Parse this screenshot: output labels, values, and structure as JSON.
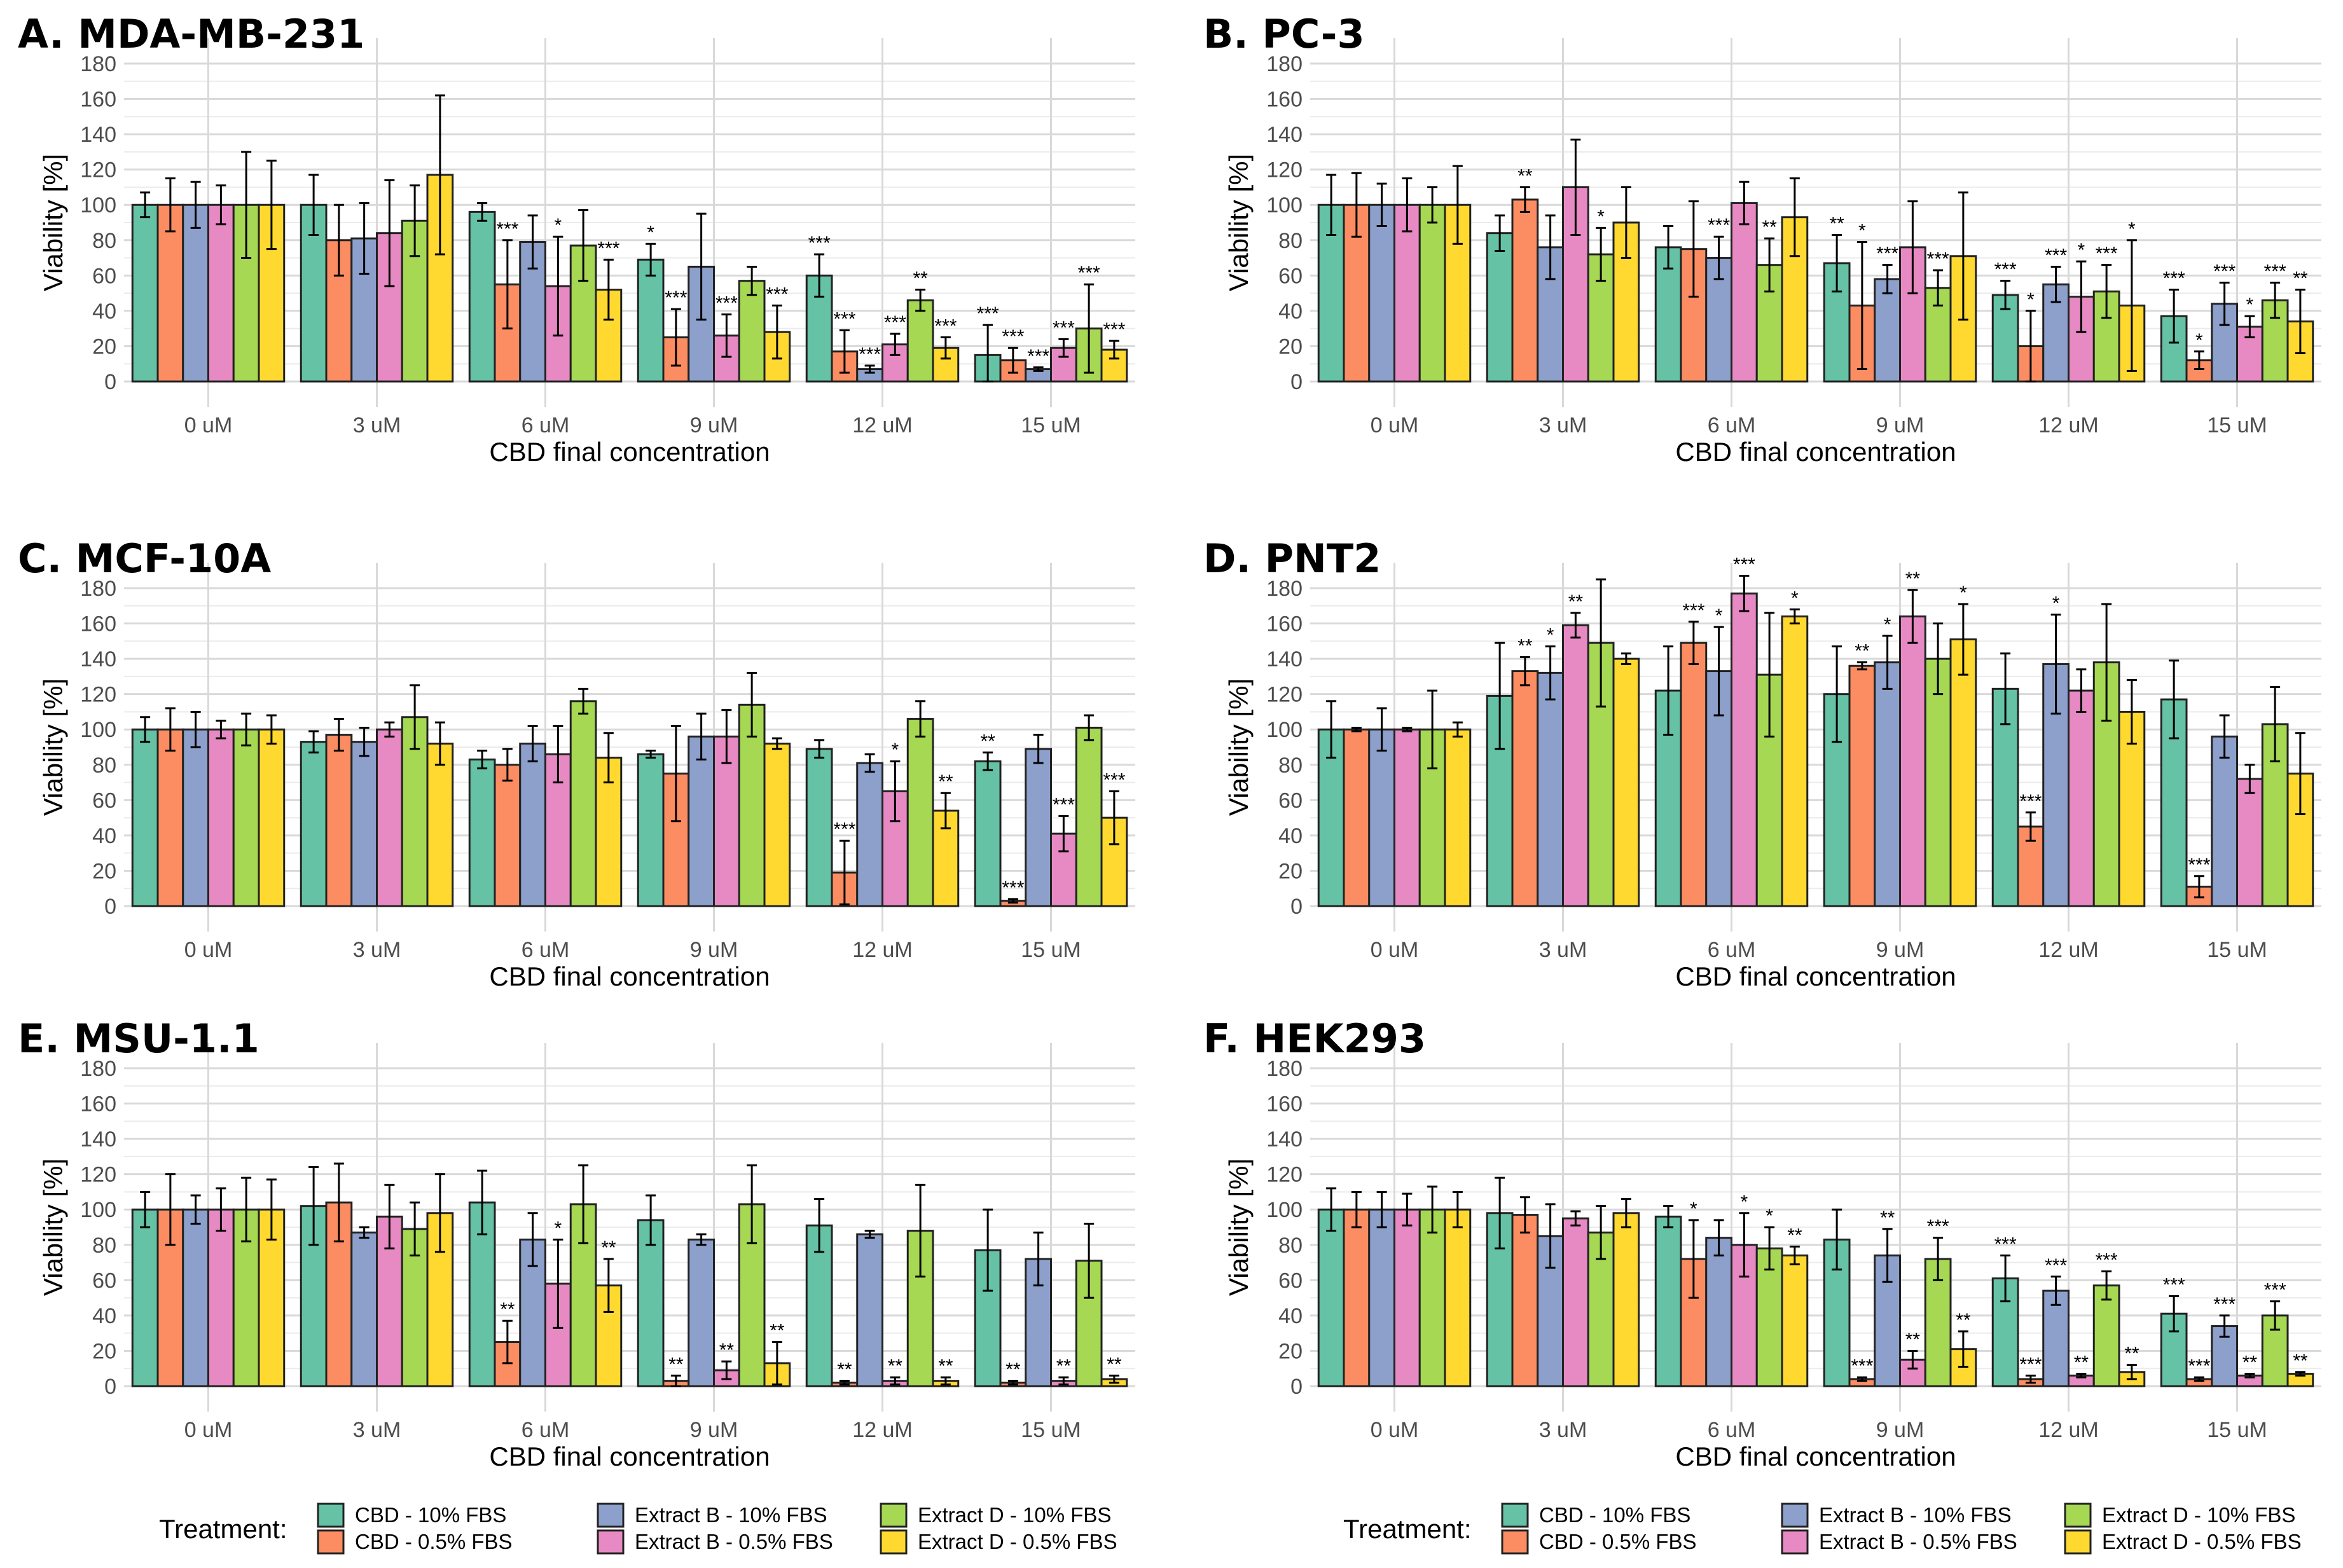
{
  "chart_data": {
    "type": "bar",
    "xlabel": "CBD final concentration",
    "ylabel": "Viability [%]",
    "ylim": [
      0,
      180
    ],
    "yticks": [
      0,
      20,
      40,
      60,
      80,
      100,
      120,
      140,
      160,
      180
    ],
    "categories": [
      "0 uM",
      "3 uM",
      "6 uM",
      "9 uM",
      "12 uM",
      "15 uM"
    ],
    "series_names": [
      "CBD - 10% FBS",
      "CBD - 0.5% FBS",
      "Extract B - 10% FBS",
      "Extract B - 0.5% FBS",
      "Extract D - 10% FBS",
      "Extract D - 0.5% FBS"
    ],
    "colors": [
      "#66C2A5",
      "#FC8D62",
      "#8DA0CB",
      "#E78AC3",
      "#A6D854",
      "#FFD92F"
    ],
    "legend": {
      "title": "Treatment:",
      "position": "bottom"
    },
    "panels": [
      {
        "title": "A. MDA-MB-231",
        "values": [
          [
            100,
            100,
            100,
            100,
            100,
            100
          ],
          [
            100,
            80,
            81,
            84,
            91,
            117
          ],
          [
            96,
            55,
            79,
            54,
            77,
            52
          ],
          [
            69,
            25,
            65,
            26,
            57,
            28
          ],
          [
            60,
            17,
            7,
            21,
            46,
            19
          ],
          [
            15,
            12,
            7,
            19,
            30,
            18
          ]
        ],
        "errors": [
          [
            7,
            15,
            13,
            11,
            30,
            25
          ],
          [
            17,
            20,
            20,
            30,
            20,
            45
          ],
          [
            5,
            25,
            15,
            28,
            20,
            17
          ],
          [
            9,
            16,
            30,
            12,
            8,
            15
          ],
          [
            12,
            12,
            2,
            6,
            6,
            6
          ],
          [
            17,
            7,
            1,
            5,
            25,
            5
          ]
        ],
        "sig": [
          [
            "",
            "",
            "",
            "",
            "",
            ""
          ],
          [
            "",
            "",
            "",
            "",
            "",
            ""
          ],
          [
            "",
            "***",
            "",
            "*",
            "",
            "***"
          ],
          [
            "*",
            "***",
            "",
            "***",
            "",
            "***"
          ],
          [
            "***",
            "***",
            "***",
            "***",
            "**",
            "***"
          ],
          [
            "***",
            "***",
            "***",
            "***",
            "***",
            "***"
          ]
        ]
      },
      {
        "title": "B. PC-3",
        "values": [
          [
            100,
            100,
            100,
            100,
            100,
            100
          ],
          [
            84,
            103,
            76,
            110,
            72,
            90
          ],
          [
            76,
            75,
            70,
            101,
            66,
            93
          ],
          [
            67,
            43,
            58,
            76,
            53,
            71
          ],
          [
            49,
            20,
            55,
            48,
            51,
            43
          ],
          [
            37,
            12,
            44,
            31,
            46,
            34
          ]
        ],
        "errors": [
          [
            17,
            18,
            12,
            15,
            10,
            22
          ],
          [
            10,
            7,
            18,
            27,
            15,
            20
          ],
          [
            12,
            27,
            12,
            12,
            15,
            22
          ],
          [
            16,
            36,
            8,
            26,
            10,
            36
          ],
          [
            8,
            20,
            10,
            20,
            15,
            37
          ],
          [
            15,
            5,
            12,
            6,
            10,
            18
          ]
        ],
        "sig": [
          [
            "",
            "",
            "",
            "",
            "",
            ""
          ],
          [
            "",
            "**",
            "",
            "",
            "*",
            ""
          ],
          [
            "",
            "",
            "***",
            "",
            "**",
            ""
          ],
          [
            "**",
            "*",
            "***",
            "",
            "***",
            ""
          ],
          [
            "***",
            "*",
            "***",
            "*",
            "***",
            "*"
          ],
          [
            "***",
            "*",
            "***",
            "*",
            "***",
            "**"
          ]
        ]
      },
      {
        "title": "C. MCF-10A",
        "values": [
          [
            100,
            100,
            100,
            100,
            100,
            100
          ],
          [
            93,
            97,
            93,
            100,
            107,
            92
          ],
          [
            83,
            80,
            92,
            86,
            116,
            84
          ],
          [
            86,
            75,
            96,
            96,
            114,
            92
          ],
          [
            89,
            19,
            81,
            65,
            106,
            54
          ],
          [
            82,
            3,
            89,
            41,
            101,
            50
          ]
        ],
        "errors": [
          [
            7,
            12,
            10,
            5,
            9,
            8
          ],
          [
            6,
            9,
            8,
            4,
            18,
            12
          ],
          [
            5,
            9,
            10,
            16,
            7,
            14
          ],
          [
            2,
            27,
            13,
            15,
            18,
            3
          ],
          [
            5,
            18,
            5,
            17,
            10,
            10
          ],
          [
            5,
            1,
            8,
            10,
            7,
            15
          ]
        ],
        "sig": [
          [
            "",
            "",
            "",
            "",
            "",
            ""
          ],
          [
            "",
            "",
            "",
            "",
            "",
            ""
          ],
          [
            "",
            "",
            "",
            "",
            "",
            ""
          ],
          [
            "",
            "",
            "",
            "",
            "",
            ""
          ],
          [
            "",
            "***",
            "",
            "*",
            "",
            "**"
          ],
          [
            "**",
            "***",
            "",
            "***",
            "",
            "***"
          ]
        ]
      },
      {
        "title": "D. PNT2",
        "values": [
          [
            100,
            100,
            100,
            100,
            100,
            100
          ],
          [
            119,
            133,
            132,
            159,
            149,
            140
          ],
          [
            122,
            149,
            133,
            177,
            131,
            164
          ],
          [
            120,
            136,
            138,
            164,
            140,
            151
          ],
          [
            123,
            45,
            137,
            122,
            138,
            110
          ],
          [
            117,
            11,
            96,
            72,
            103,
            75
          ]
        ],
        "errors": [
          [
            16,
            1,
            12,
            1,
            22,
            4
          ],
          [
            30,
            8,
            15,
            7,
            36,
            3
          ],
          [
            25,
            12,
            25,
            10,
            35,
            4
          ],
          [
            27,
            2,
            15,
            15,
            20,
            20
          ],
          [
            20,
            8,
            28,
            12,
            33,
            18
          ],
          [
            22,
            6,
            12,
            8,
            21,
            23
          ]
        ],
        "sig": [
          [
            "",
            "",
            "",
            "",
            "",
            ""
          ],
          [
            "",
            "**",
            "*",
            "**",
            "",
            ""
          ],
          [
            "",
            "***",
            "*",
            "***",
            "",
            "*"
          ],
          [
            "",
            "**",
            "*",
            "**",
            "",
            "*"
          ],
          [
            "",
            "***",
            "*",
            "",
            "",
            ""
          ],
          [
            "",
            "***",
            "",
            "",
            "",
            ""
          ]
        ]
      },
      {
        "title": "E. MSU-1.1",
        "values": [
          [
            100,
            100,
            100,
            100,
            100,
            100
          ],
          [
            102,
            104,
            87,
            96,
            89,
            98
          ],
          [
            104,
            25,
            83,
            58,
            103,
            57
          ],
          [
            94,
            3,
            83,
            9,
            103,
            13
          ],
          [
            91,
            2,
            86,
            3,
            88,
            3
          ],
          [
            77,
            2,
            72,
            3,
            71,
            4
          ]
        ],
        "errors": [
          [
            10,
            20,
            8,
            12,
            18,
            17
          ],
          [
            22,
            22,
            3,
            18,
            15,
            22
          ],
          [
            18,
            12,
            15,
            25,
            22,
            15
          ],
          [
            14,
            3,
            3,
            5,
            22,
            12
          ],
          [
            15,
            1,
            2,
            2,
            26,
            2
          ],
          [
            23,
            1,
            15,
            2,
            21,
            2
          ]
        ],
        "sig": [
          [
            "",
            "",
            "",
            "",
            "",
            ""
          ],
          [
            "",
            "",
            "",
            "",
            "",
            ""
          ],
          [
            "",
            "**",
            "",
            "*",
            "",
            "**"
          ],
          [
            "",
            "**",
            "",
            "**",
            "",
            "**"
          ],
          [
            "",
            "**",
            "",
            "**",
            "",
            "**"
          ],
          [
            "",
            "**",
            "",
            "**",
            "",
            "**"
          ]
        ]
      },
      {
        "title": "F. HEK293",
        "values": [
          [
            100,
            100,
            100,
            100,
            100,
            100
          ],
          [
            98,
            97,
            85,
            95,
            87,
            98
          ],
          [
            96,
            72,
            84,
            80,
            78,
            74
          ],
          [
            83,
            4,
            74,
            15,
            72,
            21
          ],
          [
            61,
            4,
            54,
            6,
            57,
            8
          ],
          [
            41,
            4,
            34,
            6,
            40,
            7
          ]
        ],
        "errors": [
          [
            12,
            10,
            10,
            9,
            13,
            10
          ],
          [
            20,
            10,
            18,
            4,
            15,
            8
          ],
          [
            6,
            22,
            10,
            18,
            12,
            5
          ],
          [
            17,
            1,
            15,
            5,
            12,
            10
          ],
          [
            13,
            2,
            8,
            1,
            8,
            4
          ],
          [
            10,
            1,
            6,
            1,
            8,
            1
          ]
        ],
        "sig": [
          [
            "",
            "",
            "",
            "",
            "",
            ""
          ],
          [
            "",
            "",
            "",
            "",
            "",
            ""
          ],
          [
            "",
            "*",
            "",
            "*",
            "*",
            "**"
          ],
          [
            "",
            "***",
            "**",
            "**",
            "***",
            "**"
          ],
          [
            "***",
            "***",
            "***",
            "**",
            "***",
            "**"
          ],
          [
            "***",
            "***",
            "***",
            "**",
            "***",
            "**"
          ]
        ]
      }
    ]
  }
}
